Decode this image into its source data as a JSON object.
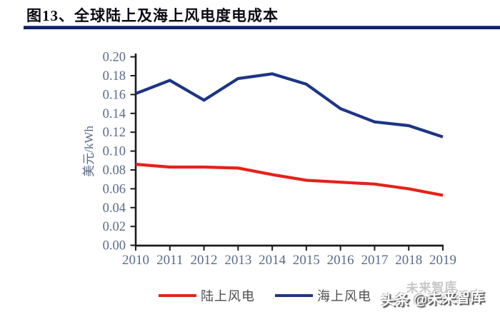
{
  "title": {
    "text": "图13、全球陆上及海上风电度电成本"
  },
  "watermark": {
    "main_text": "头条 @未来智库",
    "ghost_text": "未来智库"
  },
  "colors": {
    "title_text": "#0b0b14",
    "title_rule": "#15235b",
    "axis": "#1c1c1c",
    "tick_label": "#5a6b8a",
    "axis_title": "#5a6b8a",
    "legend_text": "#4d4d4d",
    "onshore_red": "#e3231a",
    "offshore_navy": "#1e3585"
  },
  "chart_data": {
    "type": "line",
    "x": [
      "2010",
      "2011",
      "2012",
      "2013",
      "2014",
      "2015",
      "2016",
      "2017",
      "2018",
      "2019"
    ],
    "series": [
      {
        "name": "陆上风电",
        "color": "#e3231a",
        "values": [
          0.086,
          0.083,
          0.083,
          0.082,
          0.075,
          0.069,
          0.067,
          0.065,
          0.06,
          0.053
        ]
      },
      {
        "name": "海上风电",
        "color": "#1e3585",
        "values": [
          0.161,
          0.175,
          0.154,
          0.177,
          0.182,
          0.171,
          0.145,
          0.131,
          0.127,
          0.115
        ]
      }
    ],
    "title": "图13、全球陆上及海上风电度电成本",
    "xlabel": "",
    "ylabel": "美元/kWh",
    "ylim": [
      0.0,
      0.2
    ],
    "ytick_step": 0.02,
    "ytick_labels": [
      "0.00",
      "0.02",
      "0.04",
      "0.06",
      "0.08",
      "0.10",
      "0.12",
      "0.14",
      "0.16",
      "0.18",
      "0.20"
    ],
    "grid": false,
    "legend_position": "bottom"
  }
}
